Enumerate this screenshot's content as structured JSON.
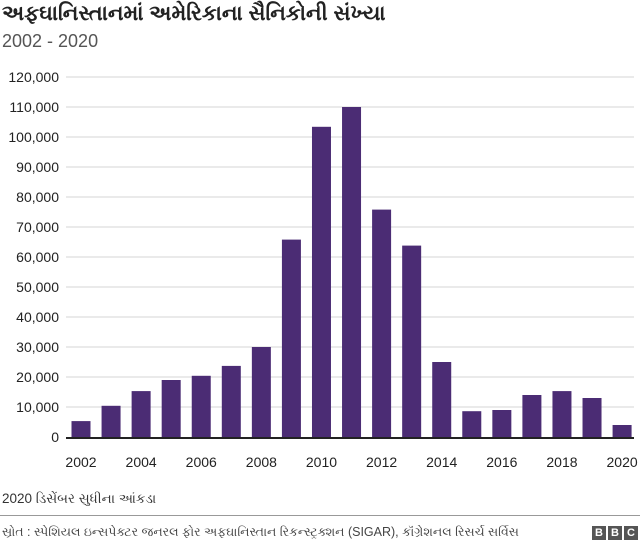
{
  "title": "અફઘાનિસ્તાનમાં અમેરિકાના સૈનિકોની સંખ્યા",
  "subtitle": "2002 - 2020",
  "note": "2020 ડિસેંબર સુધીના આંકડા",
  "source": "સ્રોત : સ્પેશિયલ ઇન્સપેક્ટર જનરલ ફોર અફઘાનિસ્તાન રિકન્સ્ટ્રક્શન (SIGAR), કૉંગ્રેશનલ રિસર્ચ સર્વિસ",
  "logo": [
    "B",
    "B",
    "C"
  ],
  "chart_data": {
    "type": "bar",
    "title": "અફઘાનિસ્તાનમાં અમેરિકાના સૈનિકોની સંખ્યા",
    "xlabel": "",
    "ylabel": "",
    "categories": [
      "2002",
      "2003",
      "2004",
      "2005",
      "2006",
      "2007",
      "2008",
      "2009",
      "2010",
      "2011",
      "2012",
      "2013",
      "2014",
      "2015",
      "2016",
      "2017",
      "2018",
      "2019",
      "2020"
    ],
    "values": [
      5300,
      10400,
      15300,
      19000,
      20400,
      23700,
      30000,
      65800,
      103400,
      110000,
      75800,
      63800,
      25000,
      8600,
      9000,
      14000,
      15300,
      13000,
      4000
    ],
    "ylim": [
      0,
      120000
    ],
    "yticks": [
      "0",
      "10,000",
      "20,000",
      "30,000",
      "40,000",
      "50,000",
      "60,000",
      "70,000",
      "80,000",
      "90,000",
      "100,000",
      "110,000",
      "120,000"
    ],
    "xticks": [
      "2002",
      "2004",
      "2006",
      "2008",
      "2010",
      "2012",
      "2014",
      "2016",
      "2018",
      "2020"
    ],
    "grid": true,
    "bar_color": "#4b2c74"
  }
}
